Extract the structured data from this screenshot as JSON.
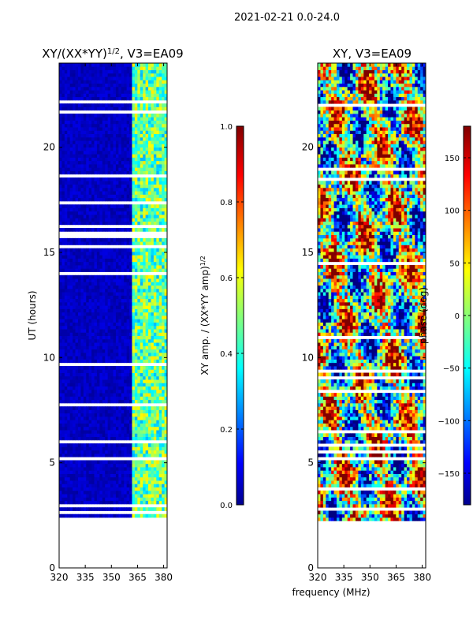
{
  "suptitle": "2021-02-21 0.0-24.0",
  "chart_data": [
    {
      "type": "heatmap",
      "title_main": "XY/(XX*YY)",
      "title_exp": "1/2",
      "title_suffix": ", V3=EA09",
      "xlabel": "",
      "ylabel": "UT (hours)",
      "xlim": [
        320,
        382
      ],
      "ylim": [
        0,
        24
      ],
      "xticks": [
        320,
        335,
        350,
        365,
        380
      ],
      "yticks": [
        0,
        5,
        10,
        15,
        20
      ],
      "colorbar": {
        "label_main": "XY amp. / (XX*YY amp)",
        "label_exp": "1/2",
        "range": [
          0.0,
          1.0
        ],
        "ticks": [
          0.0,
          0.2,
          0.4,
          0.6,
          0.8,
          1.0
        ],
        "tick_labels": [
          "0.0",
          "0.2",
          "0.4",
          "0.6",
          "0.8",
          "1.0"
        ],
        "colormap": "jet"
      },
      "bright_band_mhz": [
        362,
        382
      ],
      "data_start_hours": 2.3
    },
    {
      "type": "heatmap",
      "title": "XY, V3=EA09",
      "xlabel": "frequency (MHz)",
      "ylabel": "",
      "xlim": [
        320,
        382
      ],
      "ylim": [
        0,
        24
      ],
      "xticks": [
        320,
        335,
        350,
        365,
        380
      ],
      "yticks": [
        0,
        5,
        10,
        15,
        20
      ],
      "colorbar": {
        "label": "phase (deg)",
        "range": [
          -180,
          180
        ],
        "ticks": [
          -150,
          -100,
          -50,
          0,
          50,
          100,
          150
        ],
        "tick_labels": [
          "−150",
          "−100",
          "−50",
          "0",
          "50",
          "100",
          "150"
        ],
        "colormap": "jet"
      },
      "data_start_hours": 2.3
    }
  ],
  "colors": {
    "jet_dark_blue": "#00008f",
    "jet_blue": "#0000ff",
    "jet_cyan": "#00ffff",
    "jet_yellow": "#ffff00",
    "jet_red": "#ff0000",
    "jet_dark_red": "#800000"
  }
}
